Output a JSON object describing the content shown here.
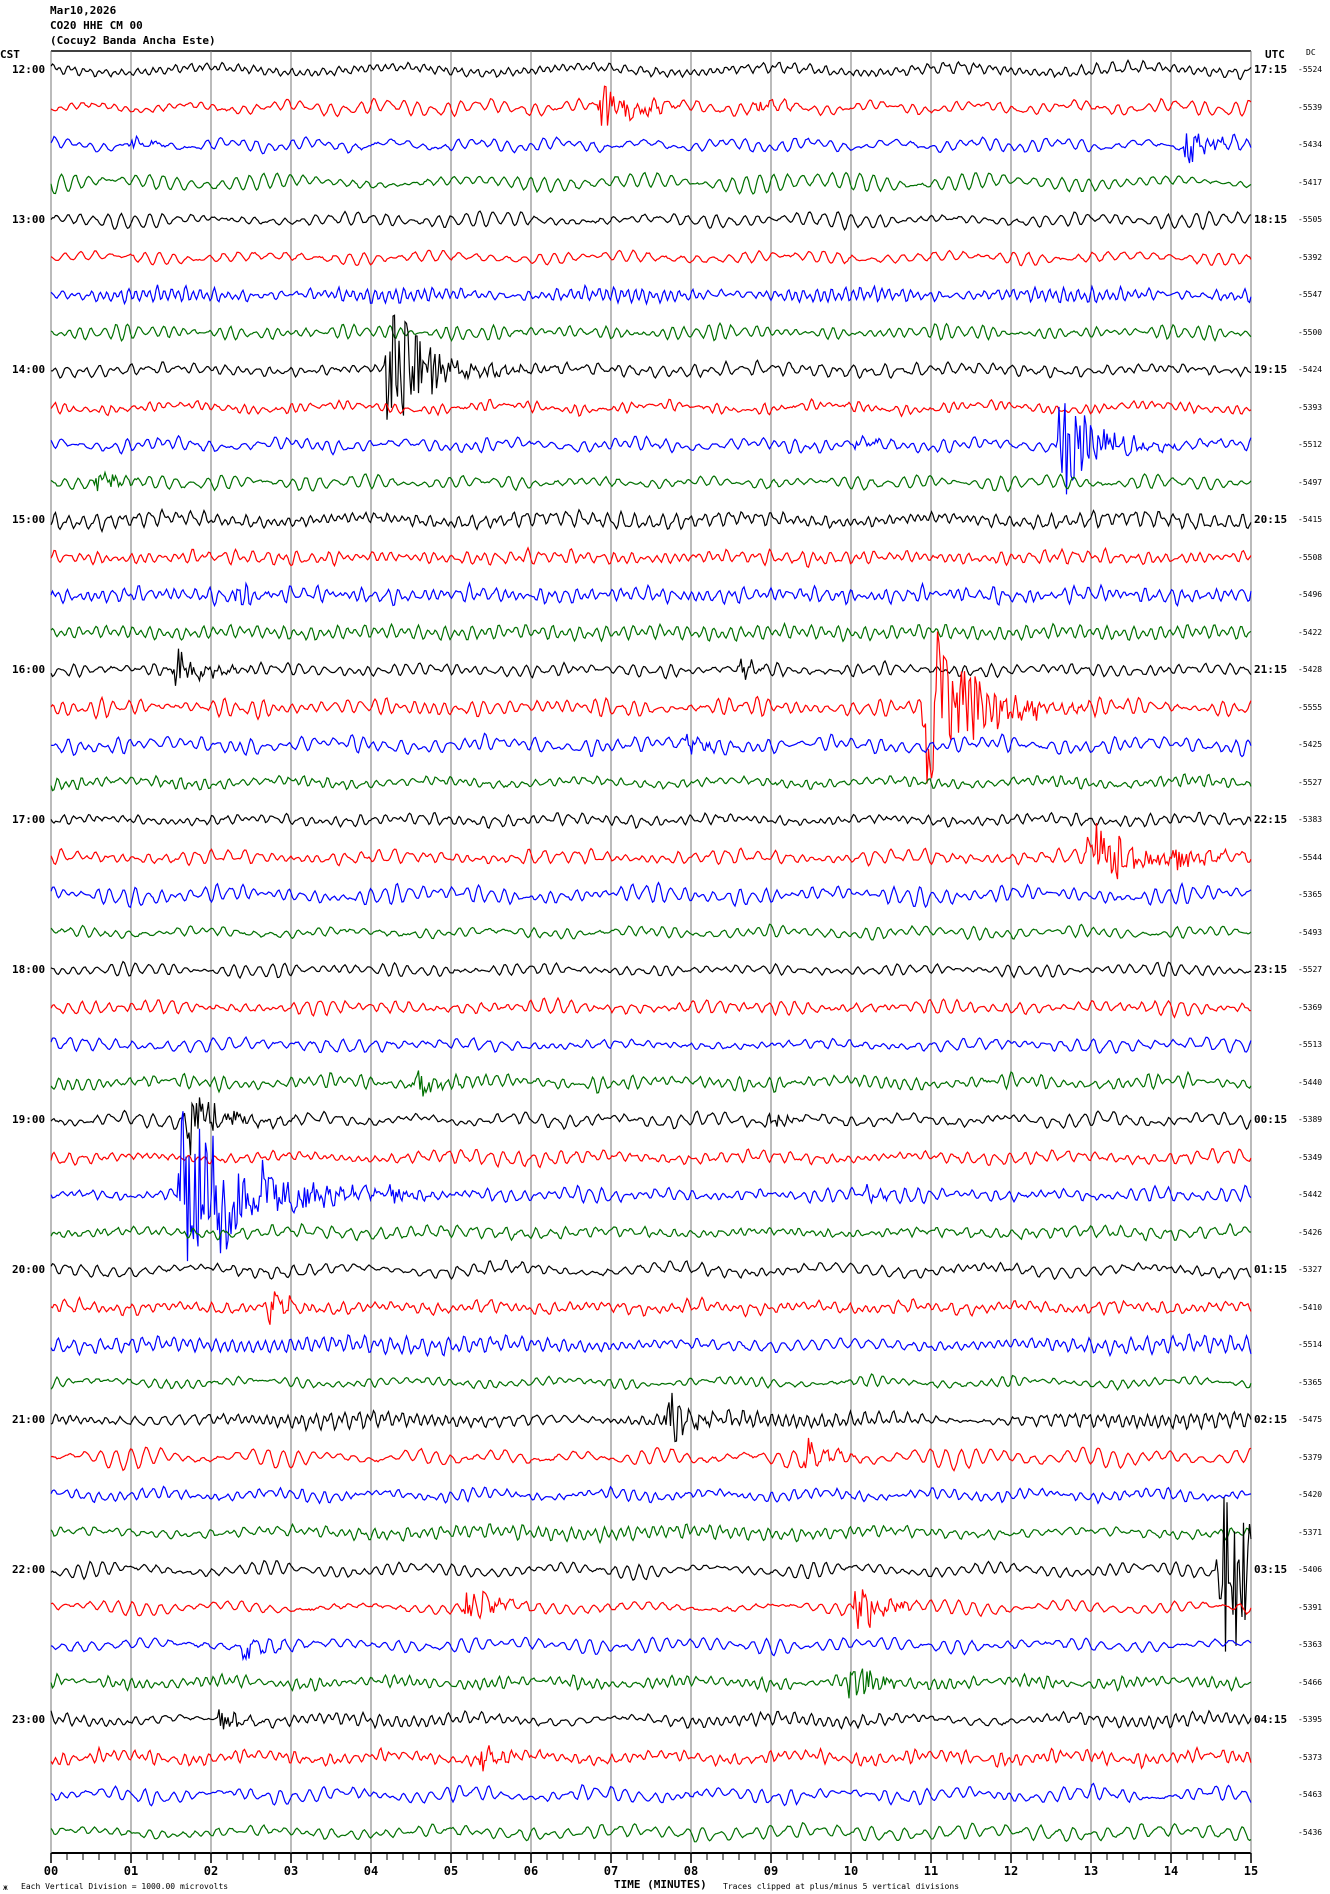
{
  "header": {
    "date": "Mar10,2026",
    "station": "CO20 HHE CM 00",
    "location": "(Cocuy2 Banda Ancha Este)",
    "left_tz": "CST",
    "right_tz": "UTC",
    "dc_header": "DC"
  },
  "footer": {
    "scale_note": "Each Vertical Division = 1000.00 microvolts",
    "xlabel": "TIME (MINUTES)",
    "clip_note": "Traces clipped at plus/minus 5 vertical divisions",
    "corner_mark": "ж"
  },
  "chart_data": {
    "type": "line",
    "title": "CO20 HHE CM 00 (Cocuy2 Banda Ancha Este) Mar10,2026",
    "xlabel": "TIME (MINUTES)",
    "xlim": [
      0,
      15
    ],
    "x_tick_labels": [
      "00",
      "01",
      "02",
      "03",
      "04",
      "05",
      "06",
      "07",
      "08",
      "09",
      "10",
      "11",
      "12",
      "13",
      "14",
      "15"
    ],
    "minor_ticks_per_minute": 5,
    "trace_colors": [
      "#000000",
      "#ff0000",
      "#0000ff",
      "#007000"
    ],
    "cst_hour_labels": [
      "12:00",
      "13:00",
      "14:00",
      "15:00",
      "16:00",
      "17:00",
      "18:00",
      "19:00",
      "20:00",
      "21:00",
      "22:00",
      "23:00"
    ],
    "utc_hour_labels": [
      "17:15",
      "18:15",
      "19:15",
      "20:15",
      "21:15",
      "22:15",
      "23:15",
      "00:15",
      "01:15",
      "02:15",
      "03:15",
      "04:15"
    ],
    "trace_minutes": 15,
    "trace_count": 48,
    "dc_offsets": [
      "-5524",
      "-5539",
      "-5434",
      "-5417",
      "-5505",
      "-5392",
      "-5547",
      "-5500",
      "-5424",
      "-5393",
      "-5512",
      "-5497",
      "-5415",
      "-5508",
      "-5496",
      "-5422",
      "-5428",
      "-5555",
      "-5425",
      "-5527",
      "-5383",
      "-5544",
      "-5365",
      "-5493",
      "-5527",
      "-5369",
      "-5513",
      "-5440",
      "-5389",
      "-5349",
      "-5442",
      "-5426",
      "-5327",
      "-5410",
      "-5514",
      "-5365",
      "-5475",
      "-5379",
      "-5420",
      "-5371",
      "-5406",
      "-5391",
      "-5363",
      "-5466",
      "-5395",
      "-5373",
      "-5463",
      "-5436"
    ],
    "events": [
      {
        "trace": 1,
        "minute": 6.87,
        "amplitude": 0.8
      },
      {
        "trace": 1,
        "minute": 8.8,
        "amplitude": 0.2
      },
      {
        "trace": 2,
        "minute": 14.17,
        "amplitude": 0.5
      },
      {
        "trace": 2,
        "minute": 1.0,
        "amplitude": 0.2
      },
      {
        "trace": 8,
        "minute": 4.2,
        "amplitude": 2.0
      },
      {
        "trace": 10,
        "minute": 12.6,
        "amplitude": 1.6
      },
      {
        "trace": 10,
        "minute": 10.0,
        "amplitude": 0.25
      },
      {
        "trace": 11,
        "minute": 0.55,
        "amplitude": 0.4
      },
      {
        "trace": 14,
        "minute": 2.3,
        "amplitude": 0.3
      },
      {
        "trace": 16,
        "minute": 1.55,
        "amplitude": 0.7
      },
      {
        "trace": 16,
        "minute": 8.6,
        "amplitude": 0.2
      },
      {
        "trace": 17,
        "minute": 10.93,
        "amplitude": 2.5
      },
      {
        "trace": 18,
        "minute": 7.95,
        "amplitude": 0.25
      },
      {
        "trace": 21,
        "minute": 12.95,
        "amplitude": 1.4
      },
      {
        "trace": 21,
        "minute": 14.05,
        "amplitude": 0.4
      },
      {
        "trace": 27,
        "minute": 4.55,
        "amplitude": 0.5
      },
      {
        "trace": 28,
        "minute": 1.7,
        "amplitude": 1.0
      },
      {
        "trace": 28,
        "minute": 8.95,
        "amplitude": 0.3
      },
      {
        "trace": 30,
        "minute": 1.62,
        "amplitude": 3.5
      },
      {
        "trace": 30,
        "minute": 4.2,
        "amplitude": 0.35
      },
      {
        "trace": 30,
        "minute": 10.2,
        "amplitude": 0.2
      },
      {
        "trace": 33,
        "minute": 2.7,
        "amplitude": 0.4
      },
      {
        "trace": 36,
        "minute": 7.7,
        "amplitude": 0.8
      },
      {
        "trace": 37,
        "minute": 9.43,
        "amplitude": 0.4
      },
      {
        "trace": 40,
        "minute": 14.6,
        "amplitude": 3.2
      },
      {
        "trace": 41,
        "minute": 5.18,
        "amplitude": 0.6
      },
      {
        "trace": 41,
        "minute": 10.05,
        "amplitude": 0.7
      },
      {
        "trace": 42,
        "minute": 2.4,
        "amplitude": 0.35
      },
      {
        "trace": 43,
        "minute": 9.97,
        "amplitude": 0.7
      },
      {
        "trace": 44,
        "minute": 2.1,
        "amplitude": 0.3
      },
      {
        "trace": 45,
        "minute": 5.35,
        "amplitude": 0.4
      }
    ]
  }
}
